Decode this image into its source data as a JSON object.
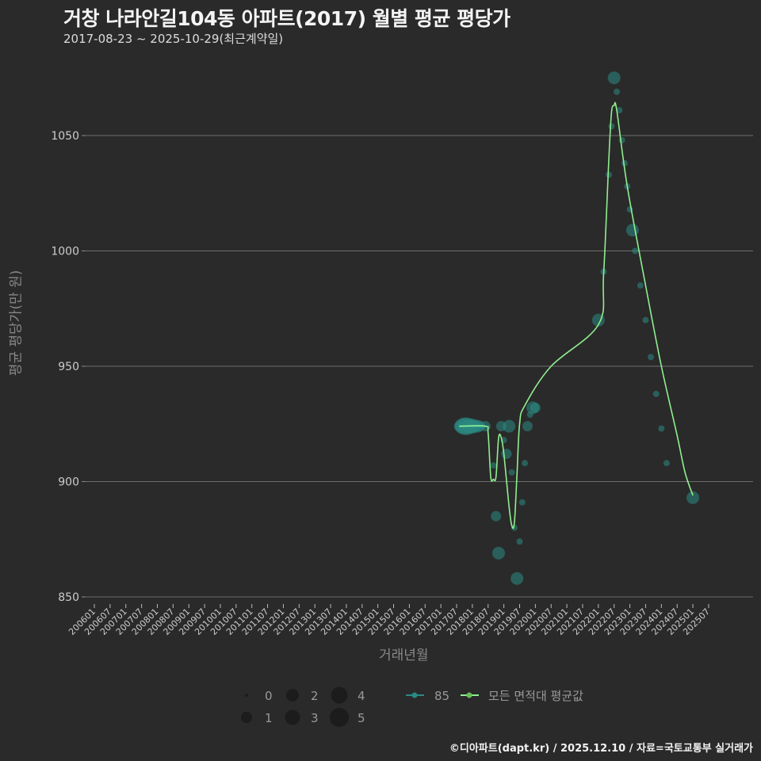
{
  "header": {
    "title": "거창 나라안길104동 아파트(2017) 월별 평균 평당가",
    "subtitle": "2017-08-23 ~ 2025-10-29(최근계약일)"
  },
  "axes": {
    "xlabel": "거래년월",
    "ylabel": "평균 평당가(만 원)"
  },
  "footer": "©디아파트(dapt.kr) / 2025.12.10 / 자료=국토교통부 실거래가",
  "legend": {
    "size_entries": [
      "0",
      "1",
      "2",
      "3",
      "4",
      "5"
    ],
    "series": [
      {
        "label": "85",
        "color": "#2a8a84"
      },
      {
        "label": "모든 면적대 평균값",
        "color": "#90ee90"
      }
    ]
  },
  "chart_data": {
    "type": "line",
    "title": "거창 나라안길104동 아파트(2017) 월별 평균 평당가",
    "subtitle": "2017-08-23 ~ 2025-10-29(최근계약일)",
    "xlabel": "거래년월",
    "ylabel": "평균 평당가(만 원)",
    "ylim": [
      845,
      1080
    ],
    "yticks": [
      850,
      900,
      950,
      1000,
      1050
    ],
    "grid": "horizontal",
    "legend_position": "bottom",
    "xticks": [
      "200601",
      "200607",
      "200701",
      "200707",
      "200801",
      "200807",
      "200901",
      "200907",
      "201001",
      "201007",
      "201101",
      "201107",
      "201201",
      "201207",
      "201301",
      "201307",
      "201401",
      "201407",
      "201501",
      "201507",
      "201601",
      "201607",
      "201701",
      "201707",
      "201801",
      "201807",
      "201901",
      "201907",
      "202001",
      "202007",
      "202101",
      "202107",
      "202201",
      "202207",
      "202301",
      "202307",
      "202401",
      "202407",
      "202501",
      "202507"
    ],
    "series": [
      {
        "name": "85",
        "kind": "scatter",
        "points": [
          {
            "x": "201708",
            "y": 924,
            "n": 2
          },
          {
            "x": "201709",
            "y": 924,
            "n": 4
          },
          {
            "x": "201710",
            "y": 924,
            "n": 5
          },
          {
            "x": "201711",
            "y": 924,
            "n": 5
          },
          {
            "x": "201712",
            "y": 924,
            "n": 4
          },
          {
            "x": "201801",
            "y": 924,
            "n": 4
          },
          {
            "x": "201802",
            "y": 924,
            "n": 3
          },
          {
            "x": "201803",
            "y": 924,
            "n": 3
          },
          {
            "x": "201804",
            "y": 924,
            "n": 2
          },
          {
            "x": "201806",
            "y": 924,
            "n": 2
          },
          {
            "x": "201809",
            "y": 907,
            "n": 1
          },
          {
            "x": "201810",
            "y": 885,
            "n": 2
          },
          {
            "x": "201811",
            "y": 869,
            "n": 3
          },
          {
            "x": "201812",
            "y": 924,
            "n": 2
          },
          {
            "x": "201901",
            "y": 918,
            "n": 1
          },
          {
            "x": "201902",
            "y": 912,
            "n": 2
          },
          {
            "x": "201903",
            "y": 924,
            "n": 3
          },
          {
            "x": "201904",
            "y": 904,
            "n": 1
          },
          {
            "x": "201905",
            "y": 880,
            "n": 1
          },
          {
            "x": "201906",
            "y": 858,
            "n": 3
          },
          {
            "x": "201907",
            "y": 874,
            "n": 1
          },
          {
            "x": "201908",
            "y": 891,
            "n": 1
          },
          {
            "x": "201909",
            "y": 908,
            "n": 1
          },
          {
            "x": "201910",
            "y": 924,
            "n": 2
          },
          {
            "x": "201911",
            "y": 929,
            "n": 1
          },
          {
            "x": "201912",
            "y": 932,
            "n": 3
          },
          {
            "x": "202001",
            "y": 932,
            "n": 2
          },
          {
            "x": "202201",
            "y": 970,
            "n": 3
          },
          {
            "x": "202203",
            "y": 991,
            "n": 1
          },
          {
            "x": "202205",
            "y": 1033,
            "n": 1
          },
          {
            "x": "202206",
            "y": 1054,
            "n": 1
          },
          {
            "x": "202207",
            "y": 1075,
            "n": 3
          },
          {
            "x": "202208",
            "y": 1069,
            "n": 1
          },
          {
            "x": "202209",
            "y": 1061,
            "n": 1
          },
          {
            "x": "202210",
            "y": 1048,
            "n": 1
          },
          {
            "x": "202211",
            "y": 1038,
            "n": 1
          },
          {
            "x": "202212",
            "y": 1028,
            "n": 1
          },
          {
            "x": "202301",
            "y": 1018,
            "n": 1
          },
          {
            "x": "202302",
            "y": 1009,
            "n": 3
          },
          {
            "x": "202303",
            "y": 1000,
            "n": 1
          },
          {
            "x": "202305",
            "y": 985,
            "n": 1
          },
          {
            "x": "202307",
            "y": 970,
            "n": 1
          },
          {
            "x": "202309",
            "y": 954,
            "n": 1
          },
          {
            "x": "202311",
            "y": 938,
            "n": 1
          },
          {
            "x": "202401",
            "y": 923,
            "n": 1
          },
          {
            "x": "202403",
            "y": 908,
            "n": 1
          },
          {
            "x": "202501",
            "y": 893,
            "n": 3
          }
        ]
      },
      {
        "name": "모든 면적대 평균값",
        "kind": "line",
        "points": [
          {
            "x": "201708",
            "y": 924
          },
          {
            "x": "201806",
            "y": 924
          },
          {
            "x": "201807",
            "y": 921
          },
          {
            "x": "201808",
            "y": 902
          },
          {
            "x": "201809",
            "y": 901
          },
          {
            "x": "201810",
            "y": 902
          },
          {
            "x": "201811",
            "y": 919
          },
          {
            "x": "201812",
            "y": 919
          },
          {
            "x": "201901",
            "y": 912
          },
          {
            "x": "201903",
            "y": 889
          },
          {
            "x": "201904",
            "y": 881
          },
          {
            "x": "201905",
            "y": 882
          },
          {
            "x": "201906",
            "y": 903
          },
          {
            "x": "201907",
            "y": 925
          },
          {
            "x": "201909",
            "y": 933
          },
          {
            "x": "202007",
            "y": 950
          },
          {
            "x": "202201",
            "y": 968
          },
          {
            "x": "202203",
            "y": 990
          },
          {
            "x": "202205",
            "y": 1040
          },
          {
            "x": "202206",
            "y": 1060
          },
          {
            "x": "202207",
            "y": 1063
          },
          {
            "x": "202208",
            "y": 1061
          },
          {
            "x": "202212",
            "y": 1028
          },
          {
            "x": "202307",
            "y": 985
          },
          {
            "x": "202401",
            "y": 950
          },
          {
            "x": "202407",
            "y": 920
          },
          {
            "x": "202410",
            "y": 904
          },
          {
            "x": "202501",
            "y": 894
          }
        ]
      }
    ]
  }
}
